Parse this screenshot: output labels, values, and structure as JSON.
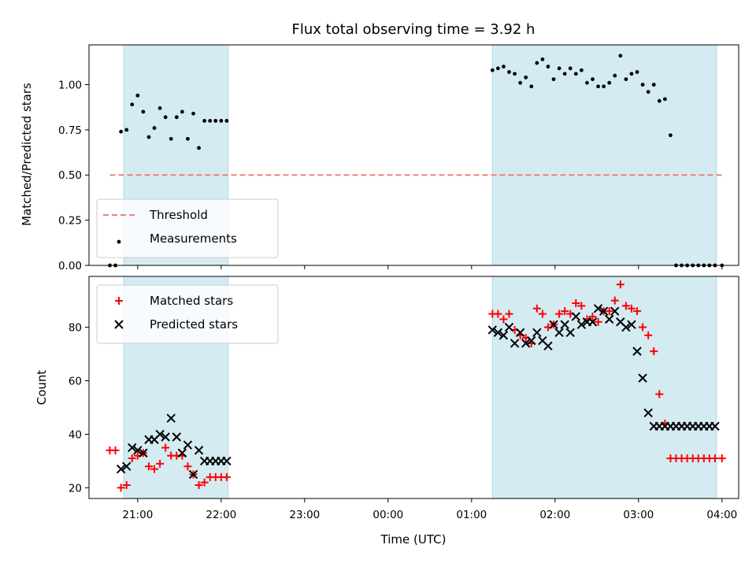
{
  "chart_data": [
    {
      "type": "scatter",
      "title": "Flux total observing time = 3.92 h",
      "xlabel": "",
      "ylabel": "Matched/Predicted stars",
      "xlim": [
        "20:25",
        "04:12"
      ],
      "ylim": [
        0,
        1.22
      ],
      "x_ticks": [
        "21:00",
        "22:00",
        "23:00",
        "00:00",
        "01:00",
        "02:00",
        "03:00",
        "04:00"
      ],
      "y_ticks": [
        "0.00",
        "0.25",
        "0.50",
        "0.75",
        "1.00"
      ],
      "shaded_intervals": [
        [
          "20:50",
          "22:05"
        ],
        [
          "01:15",
          "03:56"
        ]
      ],
      "threshold": {
        "name": "Threshold",
        "value": 0.5,
        "x_range": [
          "20:40",
          "04:00"
        ],
        "color": "#f08080"
      },
      "legend_position": "lower-left",
      "series": [
        {
          "name": "Measurements",
          "color": "#000000",
          "x": [
            "20:40",
            "20:44",
            "20:48",
            "20:52",
            "20:56",
            "21:00",
            "21:04",
            "21:08",
            "21:12",
            "21:16",
            "21:20",
            "21:24",
            "21:28",
            "21:32",
            "21:36",
            "21:40",
            "21:44",
            "21:48",
            "21:52",
            "21:56",
            "22:00",
            "22:04",
            "01:15",
            "01:19",
            "01:23",
            "01:27",
            "01:31",
            "01:35",
            "01:39",
            "01:43",
            "01:47",
            "01:51",
            "01:55",
            "01:59",
            "02:03",
            "02:07",
            "02:11",
            "02:15",
            "02:19",
            "02:23",
            "02:27",
            "02:31",
            "02:35",
            "02:39",
            "02:43",
            "02:47",
            "02:51",
            "02:55",
            "02:59",
            "03:03",
            "03:07",
            "03:11",
            "03:15",
            "03:19",
            "03:23",
            "03:27",
            "03:31",
            "03:35",
            "03:39",
            "03:43",
            "03:47",
            "03:51",
            "03:55",
            "04:00"
          ],
          "y": [
            0.0,
            0.0,
            0.74,
            0.75,
            0.89,
            0.94,
            0.85,
            0.71,
            0.76,
            0.87,
            0.82,
            0.7,
            0.82,
            0.85,
            0.7,
            0.84,
            0.65,
            0.8,
            0.8,
            0.8,
            0.8,
            0.8,
            1.08,
            1.09,
            1.1,
            1.07,
            1.06,
            1.01,
            1.04,
            0.99,
            1.12,
            1.14,
            1.1,
            1.03,
            1.09,
            1.06,
            1.09,
            1.06,
            1.08,
            1.01,
            1.03,
            0.99,
            0.99,
            1.01,
            1.05,
            1.16,
            1.03,
            1.06,
            1.07,
            1.0,
            0.96,
            1.0,
            0.91,
            0.92,
            0.72,
            0.0,
            0.0,
            0.0,
            0.0,
            0.0,
            0.0,
            0.0,
            0.0,
            0.0
          ]
        }
      ]
    },
    {
      "type": "scatter",
      "title": "",
      "xlabel": "Time (UTC)",
      "ylabel": "Count",
      "xlim": [
        "20:25",
        "04:12"
      ],
      "ylim": [
        16,
        99
      ],
      "x_ticks": [
        "21:00",
        "22:00",
        "23:00",
        "00:00",
        "01:00",
        "02:00",
        "03:00",
        "04:00"
      ],
      "y_ticks": [
        "20",
        "40",
        "60",
        "80"
      ],
      "shaded_intervals": [
        [
          "20:50",
          "22:05"
        ],
        [
          "01:15",
          "03:56"
        ]
      ],
      "legend_position": "upper-left",
      "series": [
        {
          "name": "Matched stars",
          "marker": "plus",
          "color": "#ff0000",
          "x": [
            "20:40",
            "20:44",
            "20:48",
            "20:52",
            "20:56",
            "21:00",
            "21:04",
            "21:08",
            "21:12",
            "21:16",
            "21:20",
            "21:24",
            "21:28",
            "21:32",
            "21:36",
            "21:40",
            "21:44",
            "21:48",
            "21:52",
            "21:56",
            "22:00",
            "22:04",
            "01:15",
            "01:19",
            "01:23",
            "01:27",
            "01:31",
            "01:35",
            "01:39",
            "01:43",
            "01:47",
            "01:51",
            "01:55",
            "01:59",
            "02:03",
            "02:07",
            "02:11",
            "02:15",
            "02:19",
            "02:23",
            "02:27",
            "02:31",
            "02:35",
            "02:39",
            "02:43",
            "02:47",
            "02:51",
            "02:55",
            "02:59",
            "03:03",
            "03:07",
            "03:11",
            "03:15",
            "03:19",
            "03:23",
            "03:27",
            "03:31",
            "03:35",
            "03:39",
            "03:43",
            "03:47",
            "03:51",
            "03:55",
            "04:00"
          ],
          "y": [
            34,
            34,
            20,
            21,
            31,
            32,
            33,
            28,
            27,
            29,
            35,
            32,
            32,
            32,
            28,
            25,
            21,
            22,
            24,
            24,
            24,
            24,
            85,
            85,
            83,
            85,
            79,
            77,
            76,
            74,
            87,
            85,
            80,
            81,
            85,
            86,
            85,
            89,
            88,
            83,
            84,
            82,
            86,
            86,
            90,
            96,
            88,
            87,
            86,
            80,
            77,
            71,
            55,
            44,
            31,
            31,
            31,
            31,
            31,
            31,
            31,
            31,
            31,
            31
          ]
        },
        {
          "name": "Predicted stars",
          "marker": "x",
          "color": "#000000",
          "x": [
            "20:48",
            "20:52",
            "20:56",
            "21:00",
            "21:04",
            "21:08",
            "21:12",
            "21:16",
            "21:20",
            "21:24",
            "21:28",
            "21:32",
            "21:36",
            "21:40",
            "21:44",
            "21:48",
            "21:52",
            "21:56",
            "22:00",
            "22:04",
            "01:15",
            "01:19",
            "01:23",
            "01:27",
            "01:31",
            "01:35",
            "01:39",
            "01:43",
            "01:47",
            "01:51",
            "01:55",
            "01:59",
            "02:03",
            "02:07",
            "02:11",
            "02:15",
            "02:19",
            "02:23",
            "02:27",
            "02:31",
            "02:35",
            "02:39",
            "02:43",
            "02:47",
            "02:51",
            "02:55",
            "02:59",
            "03:03",
            "03:07",
            "03:11",
            "03:15",
            "03:19",
            "03:23",
            "03:27",
            "03:31",
            "03:35",
            "03:39",
            "03:43",
            "03:47",
            "03:51",
            "03:55"
          ],
          "y": [
            27,
            28,
            35,
            34,
            33,
            38,
            38,
            40,
            39,
            46,
            39,
            33,
            36,
            25,
            34,
            30,
            30,
            30,
            30,
            30,
            79,
            78,
            77,
            80,
            74,
            78,
            74,
            75,
            78,
            75,
            73,
            81,
            78,
            81,
            78,
            84,
            81,
            82,
            82,
            87,
            86,
            83,
            86,
            82,
            80,
            81,
            71,
            61,
            48,
            43,
            43,
            43,
            43,
            43,
            43,
            43,
            43,
            43,
            43,
            43,
            43
          ]
        }
      ]
    }
  ]
}
